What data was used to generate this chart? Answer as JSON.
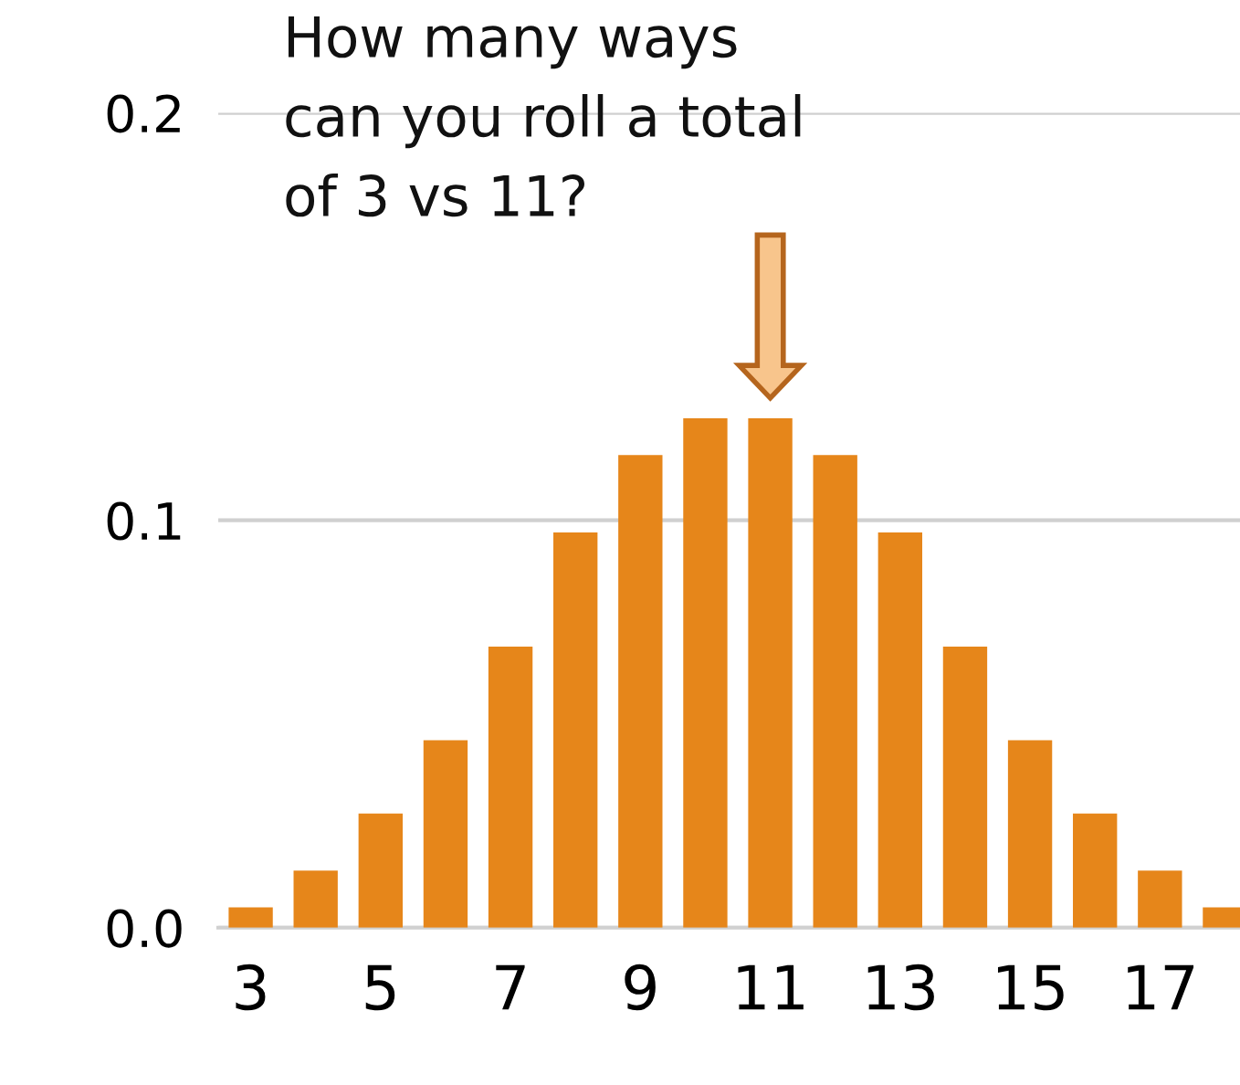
{
  "chart_data": {
    "type": "bar",
    "categories": [
      "3",
      null,
      "5",
      null,
      "7",
      null,
      "9",
      null,
      "11",
      null,
      "13",
      null,
      "15",
      null,
      "17",
      null
    ],
    "values": [
      0.005,
      0.014,
      0.028,
      0.046,
      0.069,
      0.097,
      0.116,
      0.125,
      0.125,
      0.116,
      0.097,
      0.069,
      0.046,
      0.028,
      0.014,
      0.005
    ],
    "color": "#e6861a",
    "ylim": [
      0,
      0.2
    ],
    "yticks": [
      {
        "value": 0,
        "label": "0.0"
      },
      0.1,
      0.2
    ],
    "grid": "y",
    "annotations": [
      "How many ways\ncan you roll a total\nof 3 vs 11?"
    ]
  }
}
